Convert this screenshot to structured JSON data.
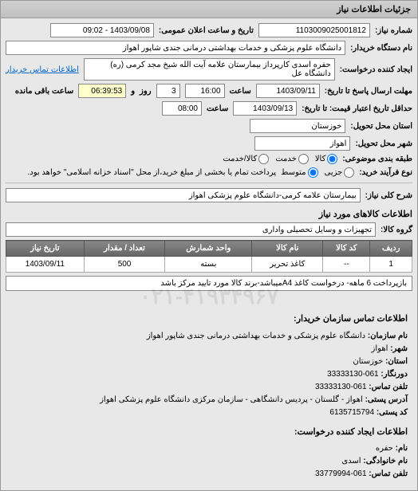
{
  "header": {
    "title": "جزئیات اطلاعات نیاز"
  },
  "fields": {
    "need_number_label": "شماره نیاز:",
    "need_number": "1103009025001812",
    "public_announce_label": "تاریخ و ساعت اعلان عمومی:",
    "public_announce": "1403/09/08 - 09:02",
    "buyer_org_label": "نام دستگاه خریدار:",
    "buyer_org": "دانشگاه علوم پزشکی و خدمات بهداشتی درمانی جندی شاپور اهواز",
    "request_creator_label": "ایجاد کننده درخواست:",
    "request_creator": "حفره اسدی کارپرداز بیمارستان علامه آیت الله شیخ مجد کرمی (ره) دانشگاه عل",
    "buyer_contact_link": "اطلاعات تماس خریدار",
    "response_deadline_label": "مهلت ارسال پاسخ تا تاریخ:",
    "response_date": "1403/09/11",
    "time_label": "ساعت",
    "response_time": "16:00",
    "and_label": "و",
    "days_value": "3",
    "day_label": "روز",
    "remaining_time": "06:39:53",
    "remaining_label": "ساعت باقی مانده",
    "price_validity_label": "حداقل تاریخ اعتبار قیمت: تا تاریخ:",
    "price_validity_date": "1403/09/13",
    "price_validity_time": "08:00",
    "delivery_province_label": "استان محل تحویل:",
    "delivery_province": "خوزستان",
    "delivery_city_label": "شهر محل تحویل:",
    "delivery_city": "اهواز",
    "subject_class_label": "طبقه بندی موضوعی:",
    "radio_goods": "کالا",
    "radio_service": "خدمت",
    "radio_goods_service": "کالا/خدمت",
    "process_type_label": "نوع فرآیند خرید:",
    "radio_medium": "متوسط",
    "radio_small": "جزیی",
    "payment_note": "پرداخت تمام یا بخشی از مبلغ خرید،از محل \"اسناد خزانه اسلامی\" خواهد بود.",
    "need_desc_label": "شرح کلی نیاز:",
    "need_desc": "بیمارستان علامه کرمی-دانشگاه علوم پزشکی اهواز",
    "goods_info_title": "اطلاعات کالاهای مورد نیاز",
    "goods_group_label": "گروه کالا:",
    "goods_group": "تجهیزات و وسایل تحصیلی واداری",
    "extra_note": "بازپرداخت 6 ماهه- درخواست کاغذ A4میباشد-برند کالا مورد تایید مرکز باشد"
  },
  "table": {
    "columns": [
      "ردیف",
      "کد کالا",
      "نام کالا",
      "واحد شمارش",
      "تعداد / مقدار",
      "تاریخ نیاز"
    ],
    "rows": [
      [
        "1",
        "--",
        "کاغذ تحریر",
        "بسته",
        "500",
        "1403/09/11"
      ]
    ]
  },
  "contact": {
    "title": "اطلاعات تماس سازمان خریدار:",
    "org_label": "نام سازمان:",
    "org": "دانشگاه علوم پزشکی و خدمات بهداشتی درمانی جندی شاپور اهواز",
    "city_label": "شهر:",
    "city": "اهواز",
    "province_label": "استان:",
    "province": "خوزستان",
    "phone_label": "دورنگار:",
    "phone": "061-33333130",
    "contact_phone_label": "تلفن تماس:",
    "contact_phone": "061-33333130",
    "address_label": "آدرس پستی:",
    "address": "اهواز - گلستان - پردیس دانشگاهی - سازمان مرکزی دانشگاه علوم پزشکی اهواز",
    "postal_label": "کد پستی:",
    "postal": "6135715794",
    "creator_title": "اطلاعات ایجاد کننده درخواست:",
    "creator_name_label": "نام:",
    "creator_name": "حفره",
    "creator_lastname_label": "نام خانوادگی:",
    "creator_lastname": "اسدی",
    "creator_phone_label": "تلفن تماس:",
    "creator_phone": "061-33779994"
  },
  "watermark": "۰۲۱-۴۱۹۳۴۹۶۷"
}
